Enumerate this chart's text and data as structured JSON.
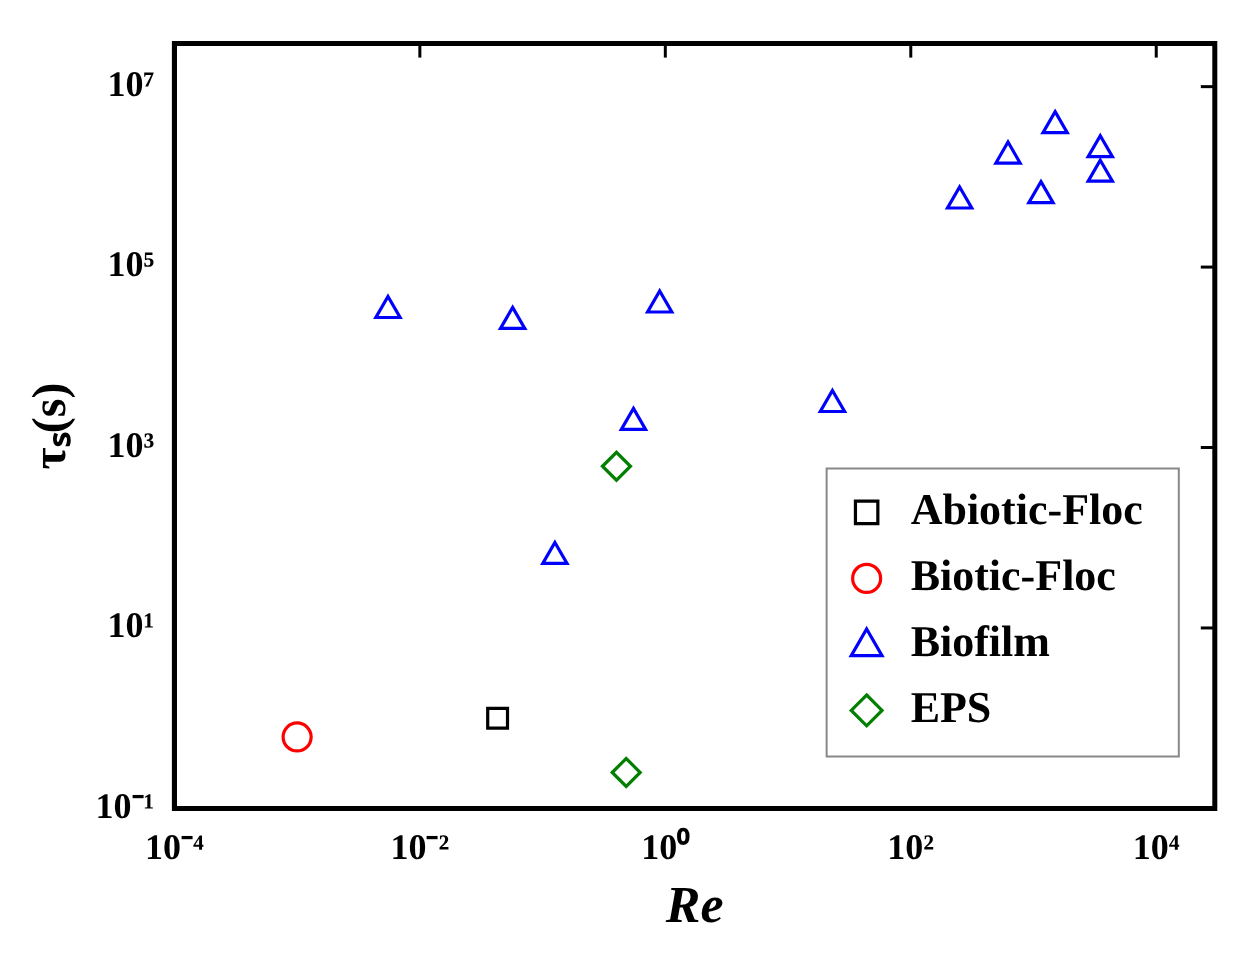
{
  "chart_data": {
    "type": "scatter",
    "xlabel": "Re",
    "ylabel": "τₛ(s)",
    "log": "xy",
    "grid": false,
    "legend": "bottom right",
    "xlim": [
      0.0001,
      30000
    ],
    "ylim": [
      0.1,
      30000000
    ],
    "xticks": [
      {
        "value": 0.0001,
        "label": "10⁻⁴"
      },
      {
        "value": 0.01,
        "label": "10⁻²"
      },
      {
        "value": 1,
        "label": "10⁰"
      },
      {
        "value": 100,
        "label": "10²"
      },
      {
        "value": 10000,
        "label": "10⁴"
      }
    ],
    "yticks": [
      {
        "value": 0.1,
        "label": "10⁻¹"
      },
      {
        "value": 10,
        "label": "10¹"
      },
      {
        "value": 1000,
        "label": "10³"
      },
      {
        "value": 100000,
        "label": "10⁵"
      },
      {
        "value": 10000000,
        "label": "10⁷"
      }
    ],
    "series": [
      {
        "name": "Abiotic-Floc",
        "color": "#000000",
        "marker": "square",
        "x": [
          0.043
        ],
        "values": [
          1.0
        ]
      },
      {
        "name": "Biotic-Floc",
        "color": "#ff0000",
        "marker": "circle",
        "x": [
          0.001
        ],
        "values": [
          0.62
        ]
      },
      {
        "name": "Biofilm",
        "color": "#0000ff",
        "marker": "triangle",
        "x": [
          0.0055,
          0.057,
          0.9,
          0.55,
          23,
          250,
          620,
          1500,
          1150,
          3500,
          3500,
          0.126
        ],
        "values": [
          33000,
          25000,
          38000,
          1900,
          3000,
          540000,
          1700000,
          3700000,
          620000,
          2000000,
          1070000,
          62
        ]
      },
      {
        "name": "EPS",
        "color": "#007f00",
        "marker": "diamond",
        "x": [
          0.4,
          0.48
        ],
        "values": [
          620,
          0.25
        ]
      }
    ]
  }
}
